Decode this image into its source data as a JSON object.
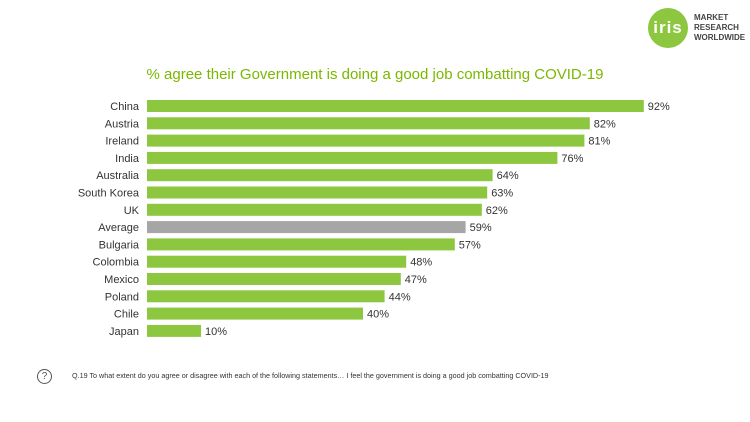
{
  "logo": {
    "mark": "iris",
    "text": "MARKET\nRESEARCH\nWORLDWIDE"
  },
  "colors": {
    "bar": "#8dc63f",
    "average_bar": "#a6a6a6",
    "title": "#7ab800"
  },
  "chart_data": {
    "type": "bar",
    "orientation": "horizontal",
    "title": "% agree their Government is doing a good job combatting COVID-19",
    "categories": [
      "China",
      "Austria",
      "Ireland",
      "India",
      "Australia",
      "South Korea",
      "UK",
      "Average",
      "Bulgaria",
      "Colombia",
      "Mexico",
      "Poland",
      "Chile",
      "Japan"
    ],
    "values": [
      92,
      82,
      81,
      76,
      64,
      63,
      62,
      59,
      57,
      48,
      47,
      44,
      40,
      10
    ],
    "value_labels": [
      "92%",
      "82%",
      "81%",
      "76%",
      "64%",
      "63%",
      "62%",
      "59%",
      "57%",
      "48%",
      "47%",
      "44%",
      "40%",
      "10%"
    ],
    "highlight_category": "Average",
    "xlim": [
      0,
      100
    ],
    "grid": false,
    "legend": "none"
  },
  "footnote": {
    "icon": "question-icon",
    "text": "Q.19 To what extent do you agree or disagree with each of the following statements… I feel the government is doing a good job combatting COVID-19"
  }
}
